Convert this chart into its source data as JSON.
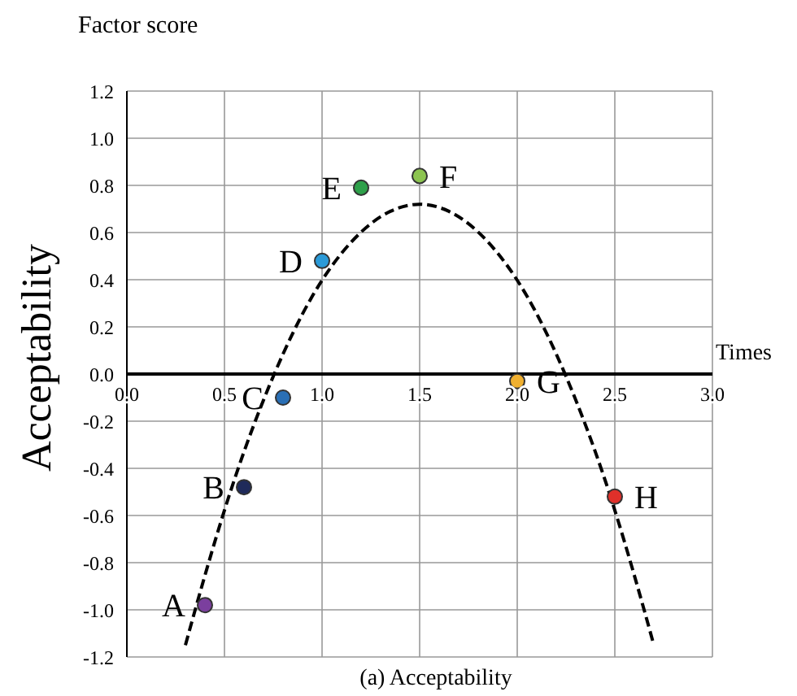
{
  "chart_data": {
    "type": "scatter",
    "title": "(a) Acceptability",
    "xlabel": "Times",
    "ylabel": "Acceptability",
    "xlim": [
      0,
      3
    ],
    "xticks": [
      {
        "value": 0,
        "label": "0.0"
      },
      {
        "value": 0.5,
        "label": "0.5"
      },
      {
        "value": 1,
        "label": "1.0"
      },
      {
        "value": 1.5,
        "label": "1.5"
      },
      {
        "value": 2,
        "label": "2.0"
      },
      {
        "value": 2.5,
        "label": "2.5"
      },
      {
        "value": 3,
        "label": "3.0"
      }
    ],
    "ylim": [
      -1.2,
      1.2
    ],
    "yticks": [
      {
        "value": -1.2,
        "label": "-1.2"
      },
      {
        "value": -1,
        "label": "-1.0"
      },
      {
        "value": -0.8,
        "label": "-0.8"
      },
      {
        "value": -0.6,
        "label": "-0.6"
      },
      {
        "value": -0.4,
        "label": "-0.4"
      },
      {
        "value": -0.2,
        "label": "-0.2"
      },
      {
        "value": 0,
        "label": "0.0"
      },
      {
        "value": 0.2,
        "label": "0.2"
      },
      {
        "value": 0.4,
        "label": "0.4"
      },
      {
        "value": 0.6,
        "label": "0.6"
      },
      {
        "value": 0.8,
        "label": "0.8"
      },
      {
        "value": 1,
        "label": "1.0"
      },
      {
        "value": 1.2,
        "label": "1.2"
      }
    ],
    "grid": true,
    "legend": false,
    "series": [
      {
        "type": "scatter",
        "x": [
          0.4,
          0.6,
          0.8,
          1.0,
          1.2,
          1.5,
          2.0,
          2.5
        ],
        "values": [
          -0.98,
          -0.48,
          -0.1,
          0.48,
          0.79,
          0.84,
          -0.03,
          -0.52
        ],
        "colors": [
          "#7b3f9e",
          "#1f2a5a",
          "#2a6fb5",
          "#2a9ad8",
          "#2ea04a",
          "#8cc450",
          "#f0b030",
          "#e0302a"
        ],
        "marker": "circle"
      },
      {
        "type": "line",
        "x": [
          0.3,
          0.35,
          0.55,
          0.75,
          0.95,
          1.15,
          1.35,
          1.5,
          1.65,
          1.85,
          2.05,
          2.25,
          2.45,
          2.65,
          2.7
        ],
        "values": [
          -1.15,
          -1.0,
          -0.45,
          -0.01,
          0.33,
          0.56,
          0.69,
          0.72,
          0.69,
          0.56,
          0.33,
          -0.01,
          -0.45,
          -1.0,
          -1.15
        ],
        "color": "#000000",
        "line_style": "dashed",
        "marker": "none"
      }
    ],
    "annotations": [
      "Factor score",
      {
        "text": "A",
        "x": 0.4,
        "y": -0.98
      },
      {
        "text": "B",
        "x": 0.6,
        "y": -0.48
      },
      {
        "text": "C",
        "x": 0.8,
        "y": -0.1
      },
      {
        "text": "D",
        "x": 1.0,
        "y": 0.48
      },
      {
        "text": "E",
        "x": 1.2,
        "y": 0.79
      },
      {
        "text": "F",
        "x": 1.5,
        "y": 0.84
      },
      {
        "text": "G",
        "x": 2.0,
        "y": -0.03
      },
      {
        "text": "H",
        "x": 2.5,
        "y": -0.52
      }
    ]
  }
}
